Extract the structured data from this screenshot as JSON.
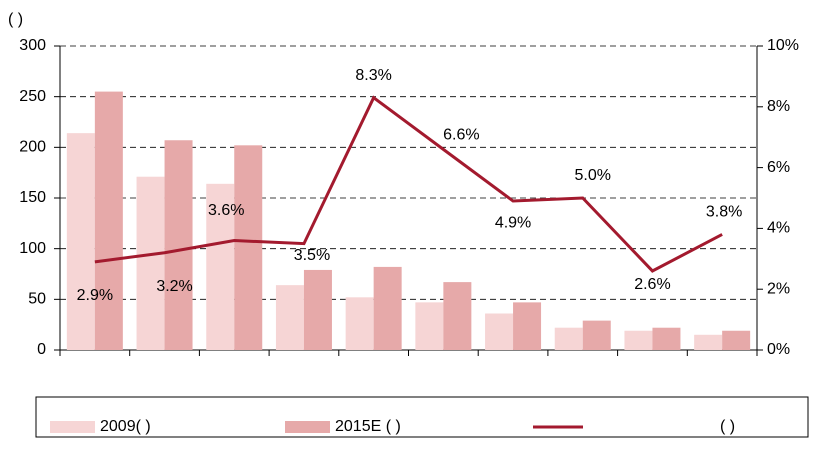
{
  "chart_data": {
    "type": "bar-line",
    "ylabel": "(      )",
    "categories": [
      null,
      null,
      null,
      null,
      null,
      null,
      null,
      null,
      null,
      null
    ],
    "series": [
      {
        "name": "2009(      )",
        "type": "bar",
        "color": "#f6d5d5",
        "values": [
          214,
          171,
          164,
          64,
          52,
          47,
          36,
          22,
          19,
          15
        ]
      },
      {
        "name": "2015E (      )",
        "type": "bar",
        "color": "#e6a9a9",
        "values": [
          255,
          207,
          202,
          79,
          82,
          67,
          47,
          29,
          22,
          19
        ]
      },
      {
        "name": "(      )",
        "type": "line",
        "axis": "y2",
        "color": "#a31a2e",
        "values": [
          2.9,
          3.2,
          3.6,
          3.5,
          8.3,
          6.6,
          4.9,
          5.0,
          2.6,
          3.8
        ],
        "value_labels": [
          "2.9%",
          "3.2%",
          "3.6%",
          "3.5%",
          "8.3%",
          "6.6%",
          "4.9%",
          "5.0%",
          "2.6%",
          "3.8%"
        ]
      }
    ],
    "ylim": [
      0,
      300
    ],
    "yticks": [
      0,
      50,
      100,
      150,
      200,
      250,
      300
    ],
    "y2lim": [
      0,
      10
    ],
    "y2ticks": [
      {
        "value": 0,
        "label": "0%"
      },
      {
        "value": 2,
        "label": "2%"
      },
      {
        "value": 4,
        "label": "4%"
      },
      {
        "value": 6,
        "label": "6%"
      },
      {
        "value": 8,
        "label": "8%"
      },
      {
        "value": 10,
        "label": "10%"
      }
    ],
    "grid": true,
    "legend": "bottom"
  }
}
